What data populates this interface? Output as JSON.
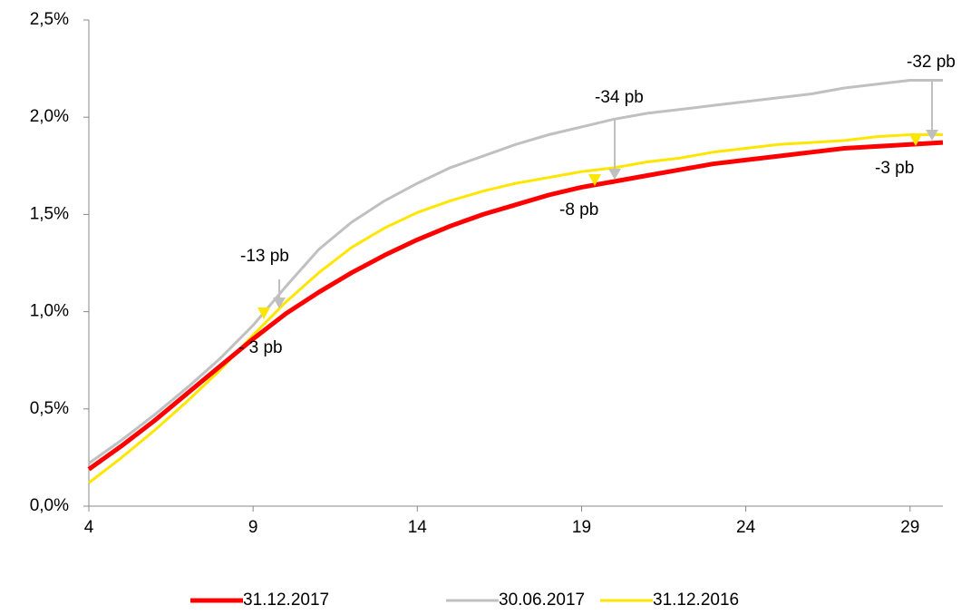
{
  "chart_data": {
    "type": "line",
    "x": [
      4,
      5,
      6,
      7,
      8,
      9,
      10,
      11,
      12,
      13,
      14,
      15,
      16,
      17,
      18,
      19,
      20,
      21,
      22,
      23,
      24,
      25,
      26,
      27,
      28,
      29,
      30
    ],
    "series": [
      {
        "name": "31.12.2017",
        "color": "#ff0000",
        "values": [
          0.19,
          0.31,
          0.44,
          0.58,
          0.72,
          0.86,
          0.99,
          1.1,
          1.2,
          1.29,
          1.37,
          1.44,
          1.5,
          1.55,
          1.6,
          1.64,
          1.67,
          1.7,
          1.73,
          1.76,
          1.78,
          1.8,
          1.82,
          1.84,
          1.85,
          1.86,
          1.87
        ]
      },
      {
        "name": "30.06.2017",
        "color": "#c0c0c0",
        "values": [
          0.22,
          0.34,
          0.47,
          0.61,
          0.76,
          0.93,
          1.13,
          1.32,
          1.46,
          1.57,
          1.66,
          1.74,
          1.8,
          1.86,
          1.91,
          1.95,
          1.99,
          2.02,
          2.04,
          2.06,
          2.08,
          2.1,
          2.12,
          2.15,
          2.17,
          2.19,
          2.19
        ]
      },
      {
        "name": "31.12.2016",
        "color": "#ffe600",
        "values": [
          0.12,
          0.25,
          0.39,
          0.54,
          0.7,
          0.88,
          1.05,
          1.2,
          1.33,
          1.43,
          1.51,
          1.57,
          1.62,
          1.66,
          1.69,
          1.72,
          1.74,
          1.77,
          1.79,
          1.82,
          1.84,
          1.86,
          1.87,
          1.88,
          1.9,
          1.91,
          1.91
        ]
      }
    ],
    "xlim": [
      4,
      30
    ],
    "xticks": [
      4,
      9,
      14,
      19,
      24,
      29
    ],
    "ylim": [
      0,
      2.5
    ],
    "yticks": [
      {
        "value": 0,
        "label": "0,0%"
      },
      {
        "value": 0.5,
        "label": "0,5%"
      },
      {
        "value": 1,
        "label": "1,0%"
      },
      {
        "value": 1.5,
        "label": "1,5%"
      },
      {
        "value": 2,
        "label": "2,0%"
      },
      {
        "value": 2.5,
        "label": "2,5%"
      }
    ],
    "grid": false,
    "legend": "bottom",
    "annotations": [
      "-13 pb",
      "- 3 pb",
      "-34 pb",
      "-8 pb",
      "-32 pb",
      "-3 pb"
    ]
  }
}
